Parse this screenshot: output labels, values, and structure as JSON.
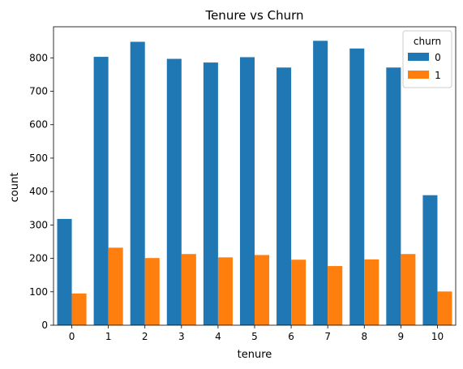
{
  "chart_data": {
    "type": "bar",
    "title": "Tenure vs Churn",
    "xlabel": "tenure",
    "ylabel": "count",
    "categories": [
      "0",
      "1",
      "2",
      "3",
      "4",
      "5",
      "6",
      "7",
      "8",
      "9",
      "10"
    ],
    "series": [
      {
        "name": "0",
        "color": "#1f77b4",
        "values": [
          318,
          803,
          848,
          797,
          786,
          802,
          771,
          851,
          828,
          771,
          389
        ]
      },
      {
        "name": "1",
        "color": "#ff7f0e",
        "values": [
          95,
          232,
          201,
          213,
          203,
          210,
          196,
          177,
          197,
          213,
          101
        ]
      }
    ],
    "ylim": [
      0,
      893
    ],
    "yticks": [
      0,
      100,
      200,
      300,
      400,
      500,
      600,
      700,
      800
    ],
    "grid": false,
    "legend": {
      "title": "churn",
      "placement": "top-right"
    }
  }
}
